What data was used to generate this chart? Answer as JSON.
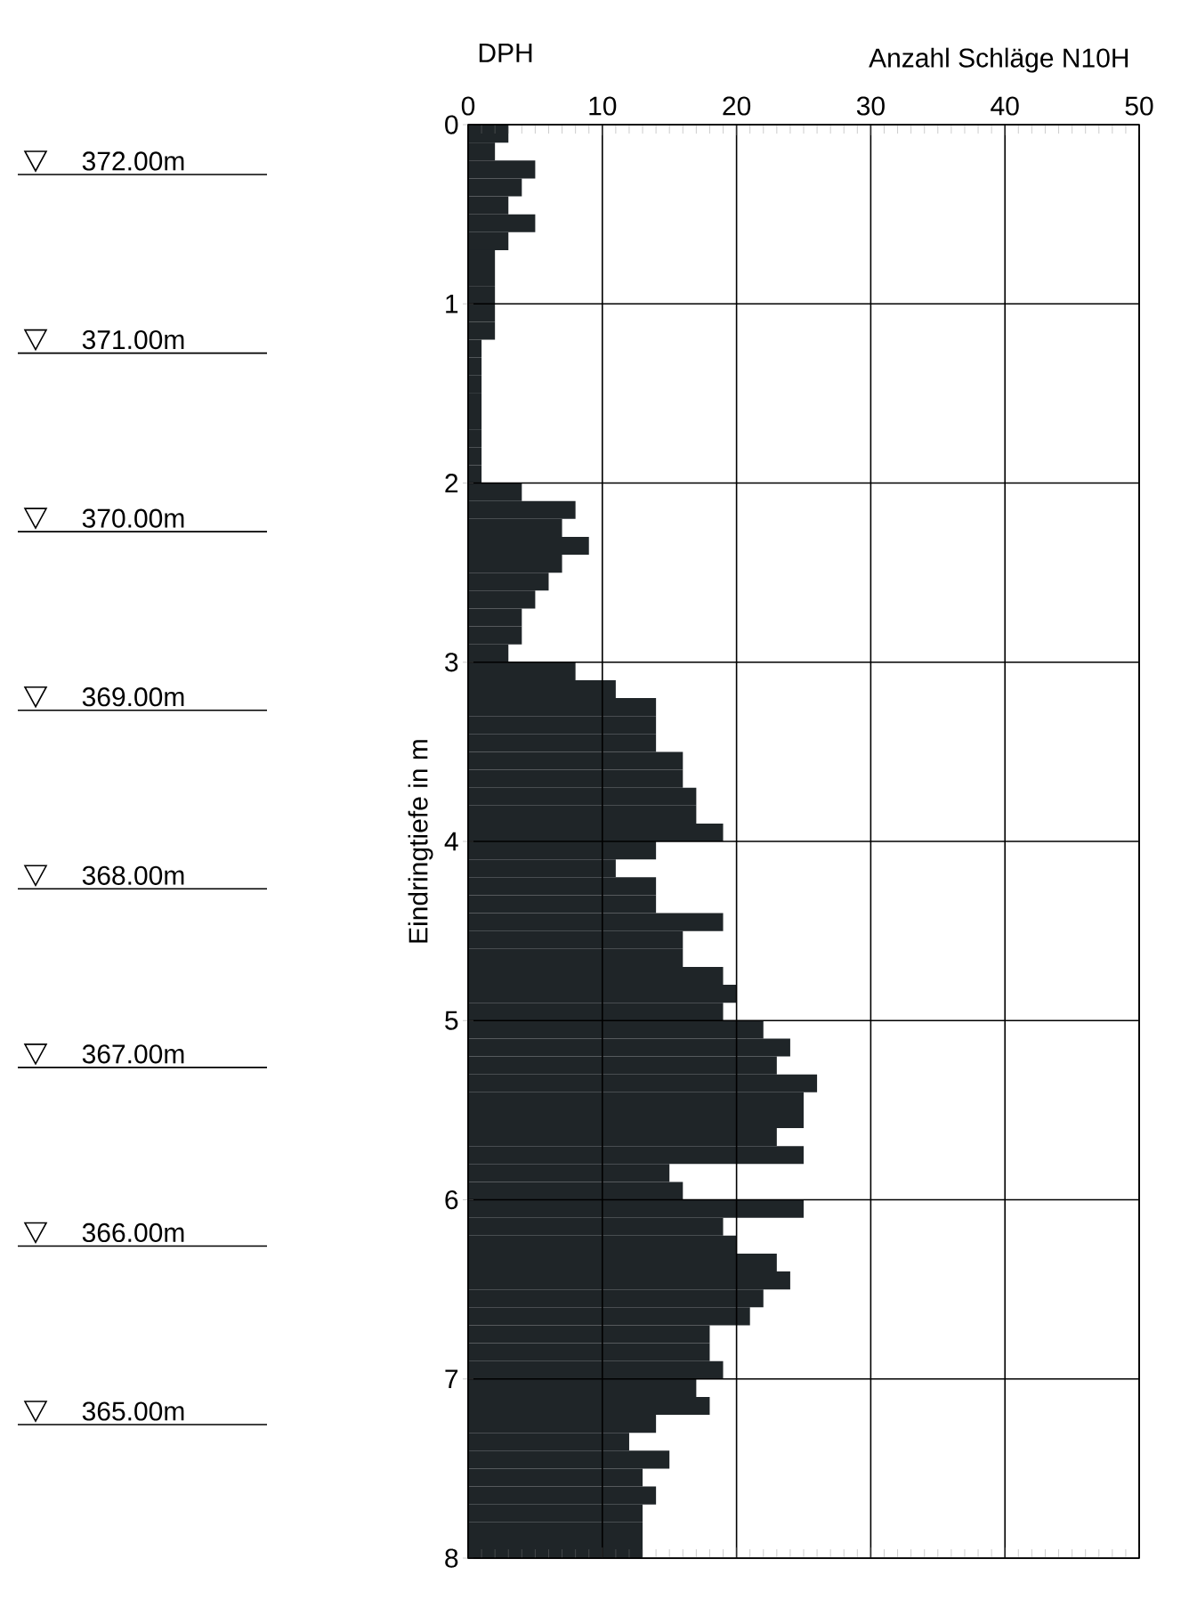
{
  "chart_data": {
    "type": "bar",
    "orientation": "horizontal",
    "title": "DPH",
    "ylabel": "Eindringtiefe in m",
    "x": [
      0.05,
      0.15,
      0.25,
      0.35,
      0.45,
      0.55,
      0.65,
      0.75,
      0.85,
      0.95,
      1.05,
      1.15,
      1.25,
      1.35,
      1.45,
      1.55,
      1.65,
      1.75,
      1.85,
      1.95,
      2.05,
      2.15,
      2.25,
      2.35,
      2.45,
      2.55,
      2.65,
      2.75,
      2.85,
      2.95,
      3.05,
      3.15,
      3.25,
      3.35,
      3.45,
      3.55,
      3.65,
      3.75,
      3.85,
      3.95,
      4.05,
      4.15,
      4.25,
      4.35,
      4.45,
      4.55,
      4.65,
      4.75,
      4.85,
      4.95,
      5.05,
      5.15,
      5.25,
      5.35,
      5.45,
      5.55,
      5.65,
      5.75,
      5.85,
      5.95,
      6.05,
      6.15,
      6.25,
      6.35,
      6.45,
      6.55,
      6.65,
      6.75,
      6.85,
      6.95,
      7.05,
      7.15,
      7.25,
      7.35,
      7.45,
      7.55,
      7.65,
      7.75,
      7.85,
      7.95
    ],
    "series": [
      {
        "axis": "x2",
        "color": "#1f2528",
        "values": [
          3,
          2,
          5,
          4,
          3,
          5,
          3,
          2,
          2,
          2,
          2,
          2,
          1,
          1,
          1,
          1,
          1,
          1,
          1,
          1,
          4,
          8,
          7,
          9,
          7,
          6,
          5,
          4,
          4,
          3,
          8,
          11,
          14,
          14,
          14,
          16,
          16,
          17,
          17,
          19,
          14,
          11,
          14,
          14,
          19,
          16,
          16,
          19,
          20,
          19,
          22,
          24,
          23,
          26,
          25,
          25,
          23,
          25,
          15,
          16,
          25,
          19,
          20,
          23,
          24,
          22,
          21,
          18,
          18,
          19,
          17,
          18,
          14,
          12,
          15,
          13,
          14,
          13,
          13,
          13
        ]
      }
    ],
    "x2label": "Anzahl Schläge N10H",
    "x2lim": [
      0,
      50
    ],
    "x2ticks": [
      0,
      10,
      20,
      30,
      40,
      50
    ],
    "ylim": [
      8,
      0
    ],
    "yticks": [
      0,
      1,
      2,
      3,
      4,
      5,
      6,
      7,
      8
    ],
    "y2lim": [
      365,
      372
    ],
    "y2ticks": [
      {
        "value": 372,
        "label": "372.00m"
      },
      {
        "value": 371,
        "label": "371.00m"
      },
      {
        "value": 370,
        "label": "370.00m"
      },
      {
        "value": 369,
        "label": "369.00m"
      },
      {
        "value": 368,
        "label": "368.00m"
      },
      {
        "value": 367,
        "label": "367.00m"
      },
      {
        "value": 366,
        "label": "366.00m"
      },
      {
        "value": 365,
        "label": "365.00m"
      }
    ],
    "grid": true
  }
}
